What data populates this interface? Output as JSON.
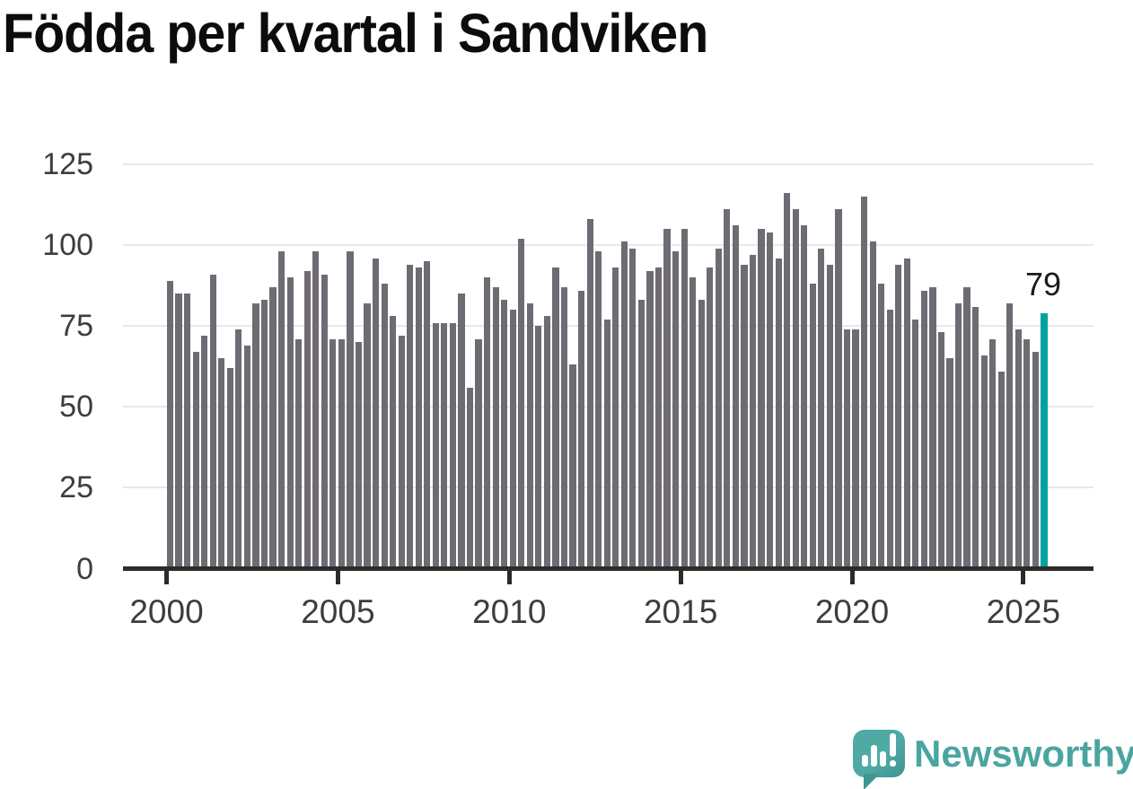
{
  "title": "Födda per kvartal i Sandviken",
  "logo": {
    "text": "Newsworthy"
  },
  "colors": {
    "bar": "#6e6b73",
    "highlight": "#00a3a0",
    "gridline": "#e8e8e8",
    "axis": "#2b2b2b",
    "tick_label": "#3d3d3d",
    "title": "#0c0c0c",
    "logo_teal": "#4aa5a1"
  },
  "chart_data": {
    "type": "bar",
    "title": "Födda per kvartal i Sandviken",
    "xlabel": "",
    "ylabel": "",
    "ylim": [
      0,
      125
    ],
    "grid": "horizontal",
    "y_ticks": [
      0,
      25,
      50,
      75,
      100,
      125
    ],
    "x_tick_labels": [
      "2000",
      "2005",
      "2010",
      "2015",
      "2020",
      "2025"
    ],
    "legend": "none",
    "highlight_index": 102,
    "highlight_label": "79",
    "categories": [
      "2000Q1",
      "2000Q2",
      "2000Q3",
      "2000Q4",
      "2001Q1",
      "2001Q2",
      "2001Q3",
      "2001Q4",
      "2002Q1",
      "2002Q2",
      "2002Q3",
      "2002Q4",
      "2003Q1",
      "2003Q2",
      "2003Q3",
      "2003Q4",
      "2004Q1",
      "2004Q2",
      "2004Q3",
      "2004Q4",
      "2005Q1",
      "2005Q2",
      "2005Q3",
      "2005Q4",
      "2006Q1",
      "2006Q2",
      "2006Q3",
      "2006Q4",
      "2007Q1",
      "2007Q2",
      "2007Q3",
      "2007Q4",
      "2008Q1",
      "2008Q2",
      "2008Q3",
      "2008Q4",
      "2009Q1",
      "2009Q2",
      "2009Q3",
      "2009Q4",
      "2010Q1",
      "2010Q2",
      "2010Q3",
      "2010Q4",
      "2011Q1",
      "2011Q2",
      "2011Q3",
      "2011Q4",
      "2012Q1",
      "2012Q2",
      "2012Q3",
      "2012Q4",
      "2013Q1",
      "2013Q2",
      "2013Q3",
      "2013Q4",
      "2014Q1",
      "2014Q2",
      "2014Q3",
      "2014Q4",
      "2015Q1",
      "2015Q2",
      "2015Q3",
      "2015Q4",
      "2016Q1",
      "2016Q2",
      "2016Q3",
      "2016Q4",
      "2017Q1",
      "2017Q2",
      "2017Q3",
      "2017Q4",
      "2018Q1",
      "2018Q2",
      "2018Q3",
      "2018Q4",
      "2019Q1",
      "2019Q2",
      "2019Q3",
      "2019Q4",
      "2020Q1",
      "2020Q2",
      "2020Q3",
      "2020Q4",
      "2021Q1",
      "2021Q2",
      "2021Q3",
      "2021Q4",
      "2022Q1",
      "2022Q2",
      "2022Q3",
      "2022Q4",
      "2023Q1",
      "2023Q2",
      "2023Q3",
      "2023Q4",
      "2024Q1",
      "2024Q2",
      "2024Q3",
      "2024Q4",
      "2025Q1",
      "2025Q2",
      "2025Q3"
    ],
    "values": [
      89,
      85,
      85,
      67,
      72,
      91,
      65,
      62,
      74,
      69,
      82,
      83,
      87,
      98,
      90,
      71,
      92,
      98,
      91,
      71,
      71,
      98,
      70,
      82,
      96,
      88,
      78,
      72,
      94,
      93,
      95,
      76,
      76,
      76,
      85,
      56,
      71,
      90,
      87,
      83,
      80,
      102,
      82,
      75,
      78,
      93,
      87,
      63,
      86,
      108,
      98,
      77,
      93,
      101,
      99,
      83,
      92,
      93,
      105,
      98,
      105,
      90,
      83,
      93,
      99,
      111,
      106,
      94,
      97,
      105,
      104,
      96,
      116,
      111,
      106,
      88,
      99,
      94,
      111,
      74,
      74,
      115,
      101,
      88,
      80,
      94,
      96,
      77,
      86,
      87,
      73,
      65,
      82,
      87,
      81,
      66,
      71,
      61,
      82,
      74,
      71,
      67,
      79
    ]
  }
}
